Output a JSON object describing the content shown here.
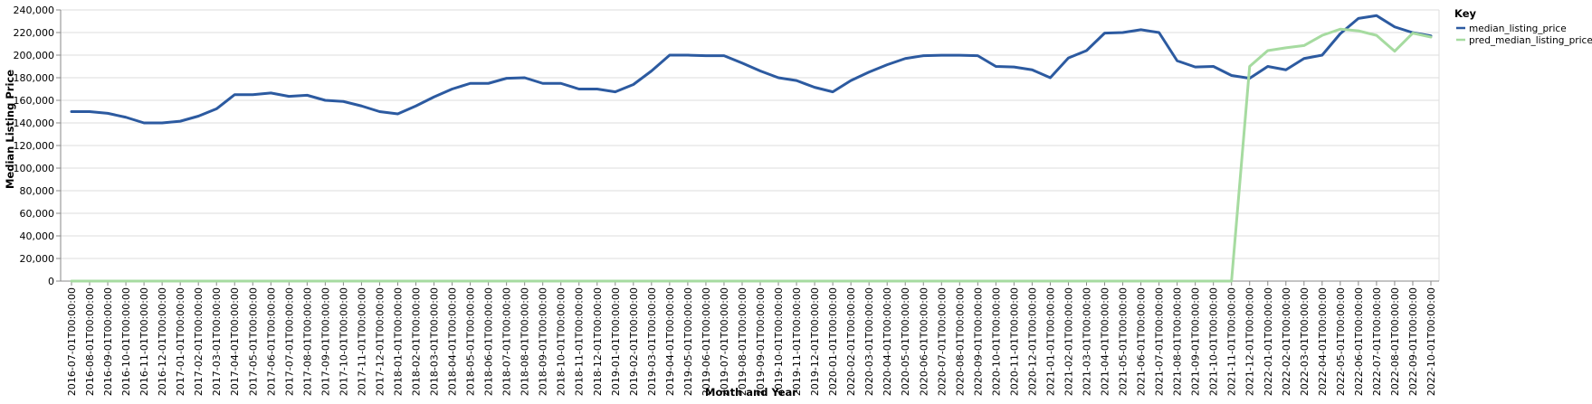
{
  "chart_data": {
    "type": "line",
    "xlabel": "Month and Year",
    "ylabel": "Median Listing Price",
    "ylim": [
      0,
      240000
    ],
    "yticks": [
      0,
      20000,
      40000,
      60000,
      80000,
      100000,
      120000,
      140000,
      160000,
      180000,
      200000,
      220000,
      240000
    ],
    "grid": true,
    "legend": {
      "title": "Key",
      "placement": "right"
    },
    "x": [
      "2016-07-01T00:00:00",
      "2016-08-01T00:00:00",
      "2016-09-01T00:00:00",
      "2016-10-01T00:00:00",
      "2016-11-01T00:00:00",
      "2016-12-01T00:00:00",
      "2017-01-01T00:00:00",
      "2017-02-01T00:00:00",
      "2017-03-01T00:00:00",
      "2017-04-01T00:00:00",
      "2017-05-01T00:00:00",
      "2017-06-01T00:00:00",
      "2017-07-01T00:00:00",
      "2017-08-01T00:00:00",
      "2017-09-01T00:00:00",
      "2017-10-01T00:00:00",
      "2017-11-01T00:00:00",
      "2017-12-01T00:00:00",
      "2018-01-01T00:00:00",
      "2018-02-01T00:00:00",
      "2018-03-01T00:00:00",
      "2018-04-01T00:00:00",
      "2018-05-01T00:00:00",
      "2018-06-01T00:00:00",
      "2018-07-01T00:00:00",
      "2018-08-01T00:00:00",
      "2018-09-01T00:00:00",
      "2018-10-01T00:00:00",
      "2018-11-01T00:00:00",
      "2018-12-01T00:00:00",
      "2019-01-01T00:00:00",
      "2019-02-01T00:00:00",
      "2019-03-01T00:00:00",
      "2019-04-01T00:00:00",
      "2019-05-01T00:00:00",
      "2019-06-01T00:00:00",
      "2019-07-01T00:00:00",
      "2019-08-01T00:00:00",
      "2019-09-01T00:00:00",
      "2019-10-01T00:00:00",
      "2019-11-01T00:00:00",
      "2019-12-01T00:00:00",
      "2020-01-01T00:00:00",
      "2020-02-01T00:00:00",
      "2020-03-01T00:00:00",
      "2020-04-01T00:00:00",
      "2020-05-01T00:00:00",
      "2020-06-01T00:00:00",
      "2020-07-01T00:00:00",
      "2020-08-01T00:00:00",
      "2020-09-01T00:00:00",
      "2020-10-01T00:00:00",
      "2020-11-01T00:00:00",
      "2020-12-01T00:00:00",
      "2021-01-01T00:00:00",
      "2021-02-01T00:00:00",
      "2021-03-01T00:00:00",
      "2021-04-01T00:00:00",
      "2021-05-01T00:00:00",
      "2021-06-01T00:00:00",
      "2021-07-01T00:00:00",
      "2021-08-01T00:00:00",
      "2021-09-01T00:00:00",
      "2021-10-01T00:00:00",
      "2021-11-01T00:00:00",
      "2021-12-01T00:00:00",
      "2022-01-01T00:00:00",
      "2022-02-01T00:00:00",
      "2022-03-01T00:00:00",
      "2022-04-01T00:00:00",
      "2022-05-01T00:00:00",
      "2022-06-01T00:00:00",
      "2022-07-01T00:00:00",
      "2022-08-01T00:00:00",
      "2022-09-01T00:00:00",
      "2022-10-01T00:00:00"
    ],
    "series": [
      {
        "name": "median_listing_price",
        "color": "#2c5aa0",
        "values": [
          150000,
          150000,
          148500,
          145000,
          140000,
          140000,
          141500,
          146000,
          152500,
          165000,
          165000,
          166500,
          163500,
          164500,
          160000,
          159000,
          155000,
          150000,
          148000,
          155000,
          163000,
          170000,
          175000,
          175000,
          179500,
          180000,
          175000,
          175000,
          170000,
          170000,
          167500,
          174000,
          186000,
          200000,
          200000,
          199500,
          199500,
          193000,
          186000,
          180000,
          177500,
          171500,
          167500,
          177500,
          185000,
          191500,
          197000,
          199500,
          199900,
          199900,
          199500,
          190000,
          189500,
          187000,
          180000,
          197500,
          204000,
          219500,
          220000,
          222500,
          220000,
          195000,
          189500,
          190000,
          182000,
          179500,
          190000,
          187000,
          197000,
          200000,
          219000,
          232500,
          235000,
          225000,
          219900,
          217000
        ]
      },
      {
        "name": "pred_median_listing_price",
        "color": "#a6dba0",
        "values": [
          0,
          0,
          0,
          0,
          0,
          0,
          0,
          0,
          0,
          0,
          0,
          0,
          0,
          0,
          0,
          0,
          0,
          0,
          0,
          0,
          0,
          0,
          0,
          0,
          0,
          0,
          0,
          0,
          0,
          0,
          0,
          0,
          0,
          0,
          0,
          0,
          0,
          0,
          0,
          0,
          0,
          0,
          0,
          0,
          0,
          0,
          0,
          0,
          0,
          0,
          0,
          0,
          0,
          0,
          0,
          0,
          0,
          0,
          0,
          0,
          0,
          0,
          0,
          0,
          0,
          190000,
          204000,
          206500,
          208500,
          217500,
          223000,
          221500,
          217500,
          203500,
          219500,
          216000
        ]
      }
    ]
  }
}
